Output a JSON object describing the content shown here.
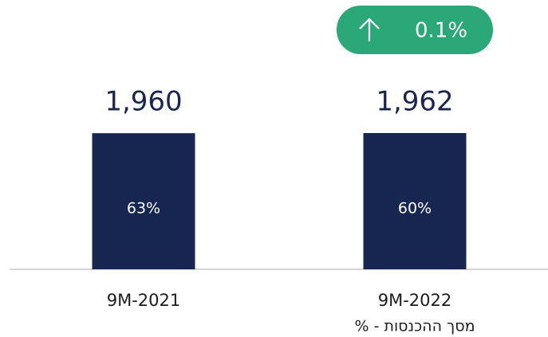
{
  "chart_data": {
    "type": "bar",
    "categories": [
      "9M-2021",
      "9M-2022"
    ],
    "values": [
      1960,
      1962
    ],
    "value_labels": [
      "1,960",
      "1,962"
    ],
    "shares": [
      63,
      60
    ],
    "share_labels": [
      "63%",
      "60%"
    ],
    "change_label": "0.1%",
    "note": "% - מסך ההכנסות",
    "color": "#172650",
    "badge_color": "#2aa878"
  }
}
